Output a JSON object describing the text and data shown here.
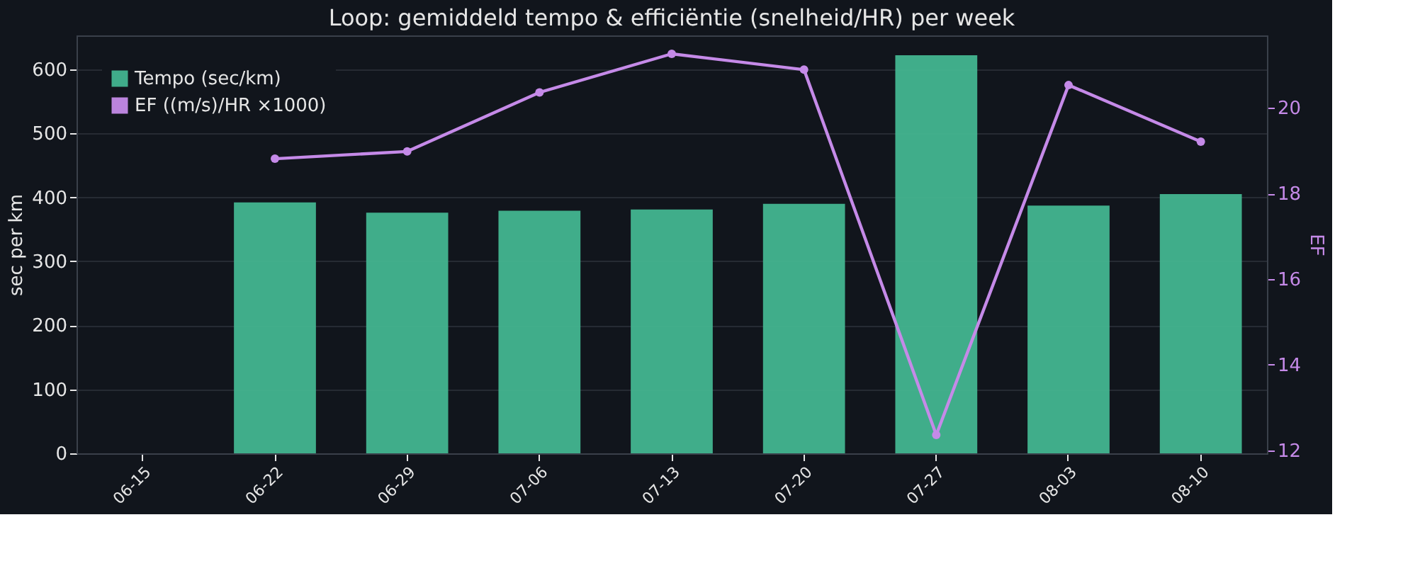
{
  "chart_data": {
    "type": "bar",
    "title": "Loop: gemiddeld tempo & efficiëntie (snelheid/HR) per week",
    "categories": [
      "06-15",
      "06-22",
      "06-29",
      "07-06",
      "07-13",
      "07-20",
      "07-27",
      "08-03",
      "08-10"
    ],
    "series": [
      {
        "name": "Tempo (sec/km)",
        "color": "#43b590",
        "values": [
          null,
          392,
          376,
          379,
          381,
          390,
          622,
          387,
          405
        ]
      },
      {
        "name": "EF ((m/s)/HR ×1000)",
        "type": "line",
        "axis": "y2",
        "color": "#c58ae8",
        "marker": "circle",
        "line_style": "solid",
        "values": [
          null,
          18.81,
          18.98,
          20.36,
          21.26,
          20.89,
          12.36,
          20.53,
          19.21
        ]
      }
    ],
    "ylabel": "sec per km",
    "y2label": "EF",
    "ylim": [
      0,
      653
    ],
    "yticks": [
      0,
      100,
      200,
      300,
      400,
      500,
      600
    ],
    "y2lim": [
      11.93,
      21.69
    ],
    "y2ticks": [
      12,
      14,
      16,
      18,
      20
    ],
    "grid": "y",
    "legend": "top left"
  }
}
